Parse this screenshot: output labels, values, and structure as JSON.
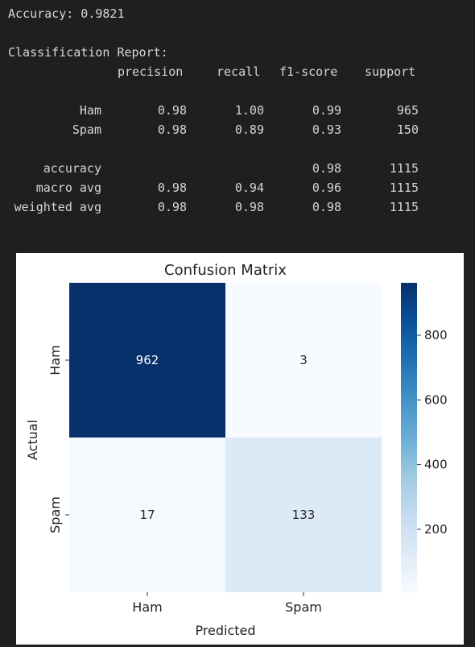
{
  "console": {
    "accuracy_line": "Accuracy: 0.9821",
    "report_title": "Classification Report:",
    "headers": [
      "precision",
      "recall",
      "f1-score",
      "support"
    ],
    "rows": [
      {
        "label": "Ham",
        "precision": "0.98",
        "recall": "1.00",
        "f1": "0.99",
        "support": "965"
      },
      {
        "label": "Spam",
        "precision": "0.98",
        "recall": "0.89",
        "f1": "0.93",
        "support": "150"
      }
    ],
    "summary_rows": [
      {
        "label": "accuracy",
        "precision": "",
        "recall": "",
        "f1": "0.98",
        "support": "1115"
      },
      {
        "label": "macro avg",
        "precision": "0.98",
        "recall": "0.94",
        "f1": "0.96",
        "support": "1115"
      },
      {
        "label": "weighted avg",
        "precision": "0.98",
        "recall": "0.98",
        "f1": "0.98",
        "support": "1115"
      }
    ]
  },
  "chart_data": {
    "type": "heatmap",
    "title": "Confusion Matrix",
    "xlabel": "Predicted",
    "ylabel": "Actual",
    "x_categories": [
      "Ham",
      "Spam"
    ],
    "y_categories": [
      "Ham",
      "Spam"
    ],
    "values": [
      [
        962,
        3
      ],
      [
        17,
        133
      ]
    ],
    "colorbar": {
      "min": 3,
      "max": 962,
      "ticks": [
        200,
        400,
        600,
        800
      ],
      "colormap": "Blues",
      "low_color": "#f7fbff",
      "high_color": "#08306b"
    }
  }
}
